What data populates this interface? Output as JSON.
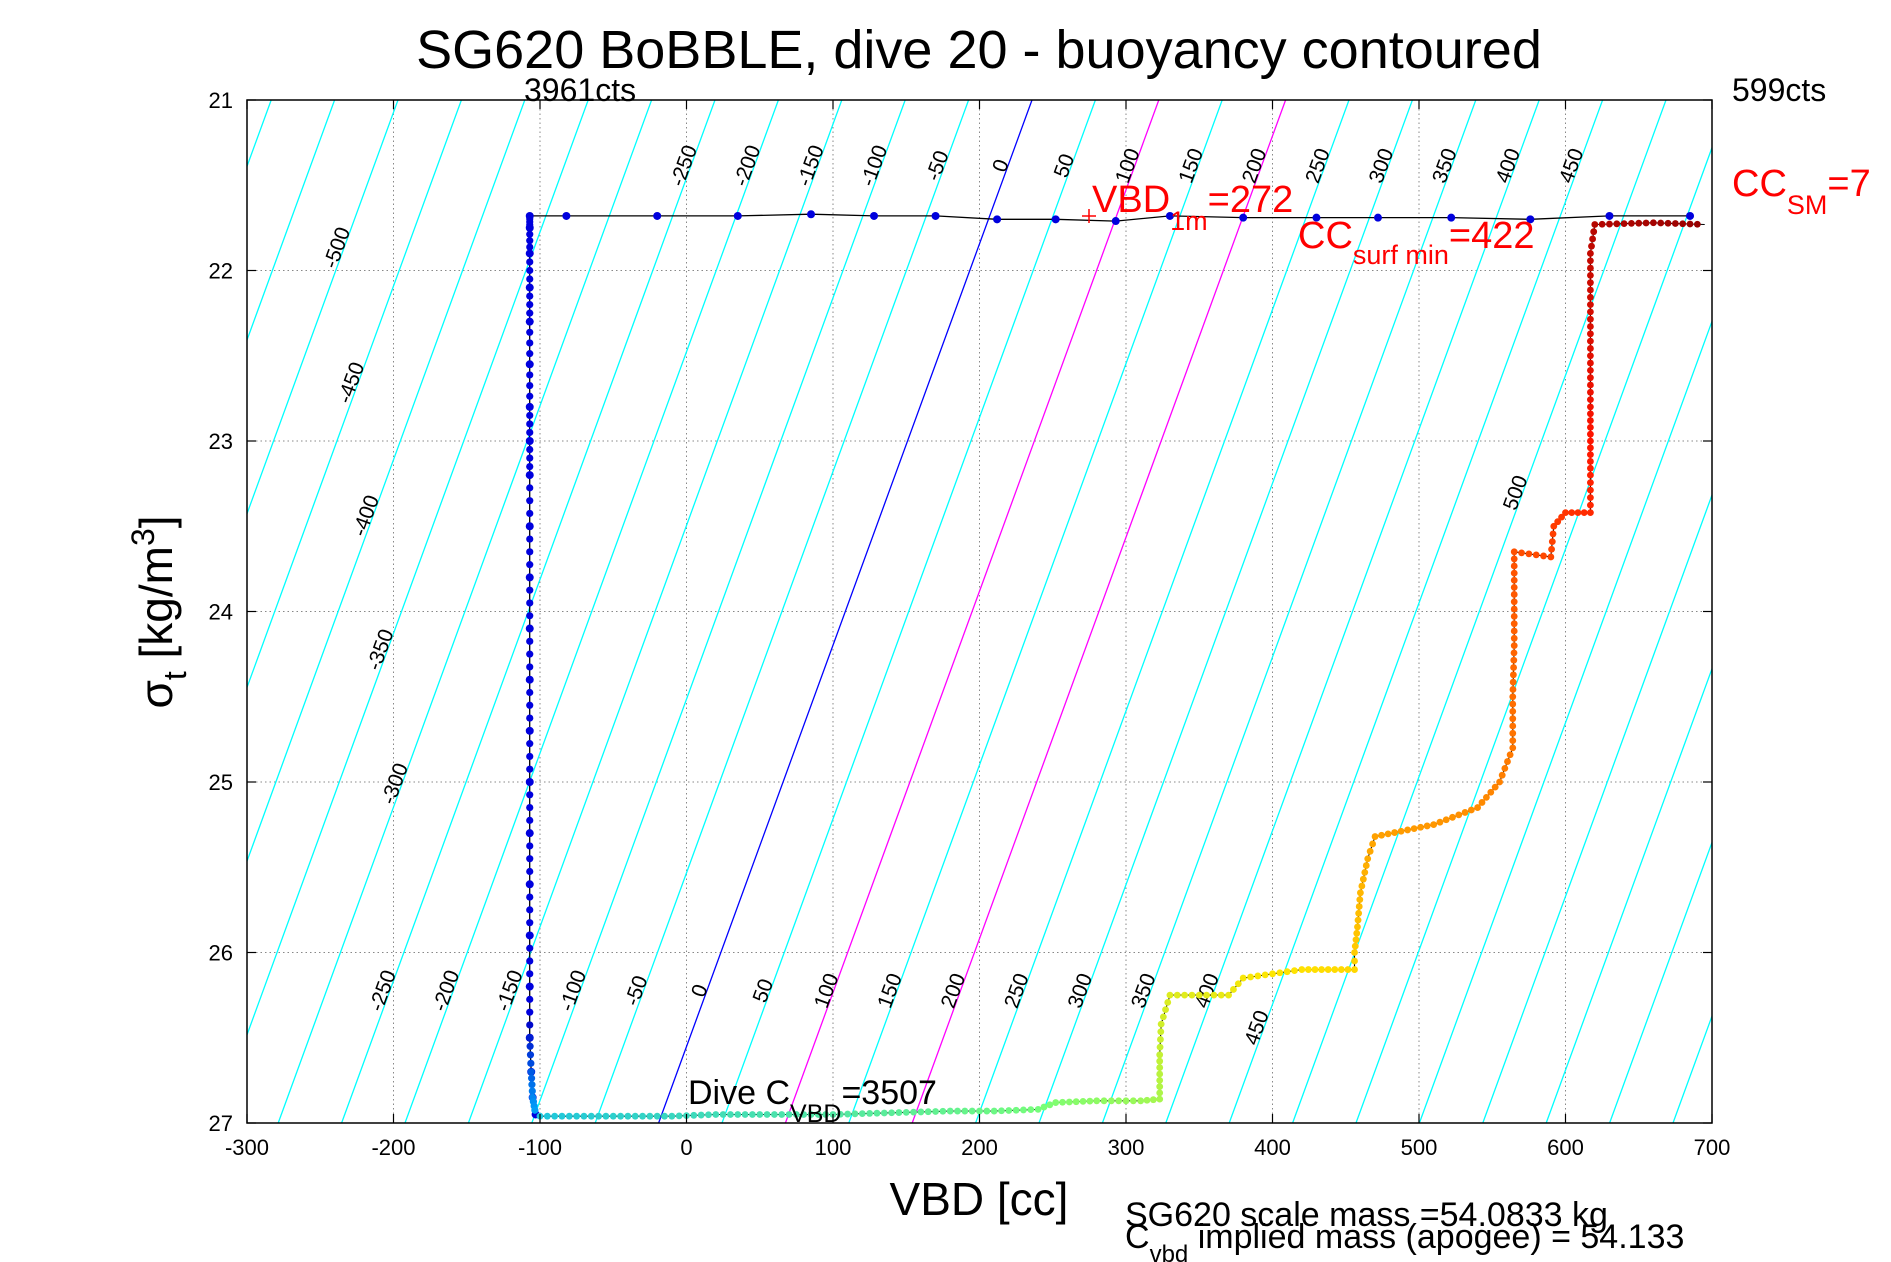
{
  "chart_data": {
    "type": "scatter",
    "title": "SG620 BoBBLE, dive 20 - buoyancy contoured",
    "xlabel": "VBD [cc]",
    "ylabel_main": "σ",
    "ylabel_sub": "t",
    "ylabel_units": " [kg/m",
    "ylabel_sup": "3",
    "ylabel_close": "]",
    "xlim": [
      -300,
      700
    ],
    "ylim": [
      21,
      27
    ],
    "y_reversed": true,
    "grid": true,
    "x_ticks": [
      "-300",
      "-200",
      "-100",
      "0",
      "100",
      "200",
      "300",
      "400",
      "500",
      "600",
      "700"
    ],
    "y_ticks": [
      "21",
      "22",
      "23",
      "24",
      "25",
      "26",
      "27"
    ],
    "top_left_counts": "3961cts",
    "top_right_counts": "599cts",
    "contour_labels_top": [
      "-500",
      "-450",
      "-400",
      "-350",
      "-300",
      "-250",
      "-200",
      "-150",
      "-100",
      "-50",
      "0",
      "50",
      "100",
      "150",
      "200",
      "250",
      "300",
      "350",
      "400",
      "450"
    ],
    "contour_labels_bottom": [
      "-250",
      "-200",
      "-150",
      "-100",
      "-50",
      "0",
      "50",
      "100",
      "150",
      "200",
      "250",
      "300",
      "350",
      "400",
      "450",
      "500"
    ],
    "annotations": {
      "vbd_1m": {
        "main": "VBD",
        "sub": "1m",
        "value": "=272"
      },
      "cc_surf_min": {
        "main": "CC",
        "sub": "surf min",
        "value": "=422"
      },
      "cc_sm": {
        "main": "CC",
        "sub": "SM",
        "value": "=7"
      },
      "dive_cvbd": {
        "main": "Dive C",
        "sub": "VBD",
        "value": "=3507"
      }
    },
    "footer_line1": "SG620 scale mass =54.0833 kg",
    "footer_line2_main": "C",
    "footer_line2_sub": "vbd",
    "footer_line2_rest": " implied mass (apogee) = 54.133",
    "colors": {
      "contour": "#00ffff",
      "neutral_line": "#0000ff",
      "range_lines": "#ff00ff",
      "annotation": "#ff0000"
    },
    "series": [
      {
        "role": "dive",
        "points": [
          [
            -82,
            21.68
          ],
          [
            -20,
            21.68
          ],
          [
            35,
            21.68
          ],
          [
            85,
            21.67
          ],
          [
            128,
            21.68
          ],
          [
            170,
            21.68
          ],
          [
            212,
            21.7
          ],
          [
            252,
            21.7
          ],
          [
            293,
            21.71
          ],
          [
            330,
            21.68
          ],
          [
            380,
            21.69
          ],
          [
            430,
            21.69
          ],
          [
            472,
            21.69
          ],
          [
            522,
            21.69
          ],
          [
            576,
            21.7
          ],
          [
            630,
            21.68
          ],
          [
            685,
            21.68
          ],
          [
            -107,
            21.68
          ],
          [
            -107,
            21.75
          ],
          [
            -107,
            21.9
          ],
          [
            -107,
            22.1
          ],
          [
            -107,
            22.3
          ],
          [
            -107,
            22.55
          ],
          [
            -107,
            22.8
          ],
          [
            -107,
            23.0
          ],
          [
            -107,
            23.2
          ],
          [
            -107,
            23.5
          ],
          [
            -107,
            23.8
          ],
          [
            -107,
            24.1
          ],
          [
            -107,
            24.4
          ],
          [
            -107,
            24.7
          ],
          [
            -107,
            25.0
          ],
          [
            -107,
            25.3
          ],
          [
            -107,
            25.6
          ],
          [
            -107,
            25.9
          ],
          [
            -107,
            26.2
          ],
          [
            -107,
            26.5
          ],
          [
            -106,
            26.7
          ],
          [
            -105,
            26.85
          ],
          [
            -103,
            26.95
          ]
        ]
      },
      {
        "role": "climb",
        "points": [
          [
            -100,
            26.96
          ],
          [
            -70,
            26.96
          ],
          [
            -40,
            26.96
          ],
          [
            -10,
            26.96
          ],
          [
            20,
            26.95
          ],
          [
            60,
            26.95
          ],
          [
            100,
            26.95
          ],
          [
            140,
            26.94
          ],
          [
            180,
            26.93
          ],
          [
            210,
            26.93
          ],
          [
            240,
            26.92
          ],
          [
            252,
            26.88
          ],
          [
            280,
            26.87
          ],
          [
            310,
            26.87
          ],
          [
            323,
            26.86
          ],
          [
            323,
            26.75
          ],
          [
            323,
            26.6
          ],
          [
            324,
            26.42
          ],
          [
            330,
            26.25
          ],
          [
            370,
            26.25
          ],
          [
            380,
            26.15
          ],
          [
            420,
            26.1
          ],
          [
            456,
            26.1
          ],
          [
            456,
            26.0
          ],
          [
            458,
            25.85
          ],
          [
            460,
            25.65
          ],
          [
            465,
            25.45
          ],
          [
            470,
            25.32
          ],
          [
            510,
            25.25
          ],
          [
            540,
            25.15
          ],
          [
            555,
            25.0
          ],
          [
            564,
            24.8
          ],
          [
            564,
            24.5
          ],
          [
            565,
            24.2
          ],
          [
            565,
            23.9
          ],
          [
            565,
            23.65
          ],
          [
            590,
            23.68
          ],
          [
            592,
            23.5
          ],
          [
            600,
            23.42
          ],
          [
            617,
            23.42
          ],
          [
            617,
            23.2
          ],
          [
            617,
            23.0
          ],
          [
            617,
            22.8
          ],
          [
            617,
            22.5
          ],
          [
            617,
            22.2
          ],
          [
            617,
            21.9
          ],
          [
            620,
            21.73
          ],
          [
            660,
            21.72
          ],
          [
            695,
            21.73
          ]
        ]
      }
    ]
  }
}
